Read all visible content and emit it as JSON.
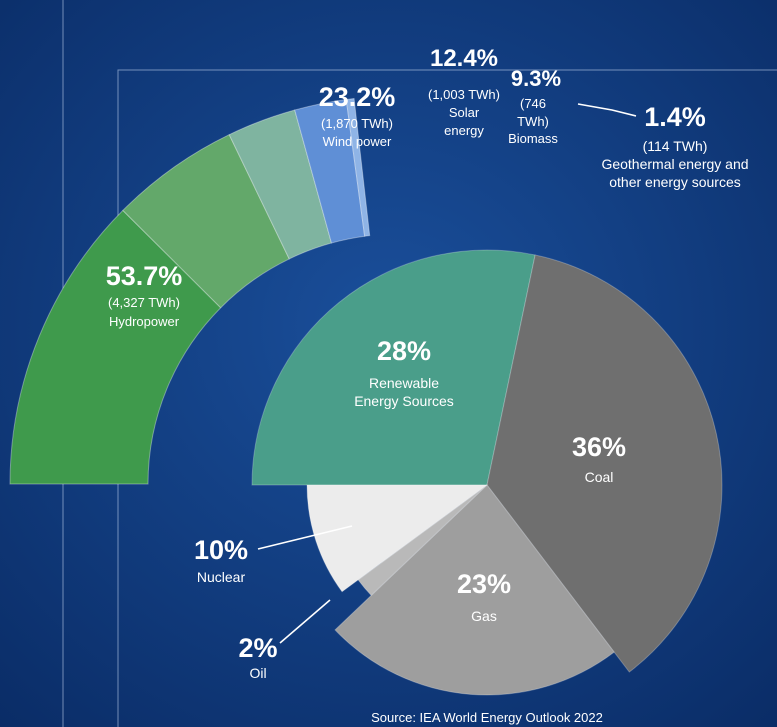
{
  "source": "Source: IEA World Energy Outlook 2022",
  "chart_data": [
    {
      "type": "pie",
      "slices": [
        {
          "key": "renewable",
          "value": 28,
          "label": "28%",
          "name_lines": [
            "Renewable",
            "Energy Sources"
          ],
          "color": "#4a9e8a"
        },
        {
          "key": "coal",
          "value": 36,
          "label": "36%",
          "name_lines": [
            "Coal"
          ],
          "color": "#6f6f6f"
        },
        {
          "key": "gas",
          "value": 23,
          "label": "23%",
          "name_lines": [
            "Gas"
          ],
          "color": "#9e9e9e"
        },
        {
          "key": "oil",
          "value": 2,
          "label": "2%",
          "name_lines": [
            "Oil"
          ],
          "color": "#b9b9b9"
        },
        {
          "key": "nuclear",
          "value": 10,
          "label": "10%",
          "name_lines": [
            "Nuclear"
          ],
          "color": "#ececec"
        }
      ]
    },
    {
      "type": "pie",
      "segments": [
        {
          "key": "hydro",
          "value": 53.7,
          "label": "53.7%",
          "sub_lines": [
            "(4,327 TWh)",
            "Hydropower"
          ],
          "color": "#3f9a4c"
        },
        {
          "key": "wind",
          "value": 23.2,
          "label": "23.2%",
          "sub_lines": [
            "(1,870 TWh)",
            "Wind power"
          ],
          "color": "#63a86a"
        },
        {
          "key": "solar",
          "value": 12.4,
          "label": "12.4%",
          "sub_lines": [
            "(1,003 TWh)",
            "Solar",
            "energy"
          ],
          "color": "#7fb4a0"
        },
        {
          "key": "biomass",
          "value": 9.3,
          "label": "9.3%",
          "sub_lines": [
            "(746",
            "TWh)",
            "Biomass"
          ],
          "color": "#5f8fd6"
        },
        {
          "key": "geo",
          "value": 1.4,
          "label": "1.4%",
          "sub_lines": [
            "(114 TWh)",
            "Geothermal energy and",
            "other energy sources"
          ],
          "color": "#8fb4e6"
        }
      ]
    }
  ]
}
